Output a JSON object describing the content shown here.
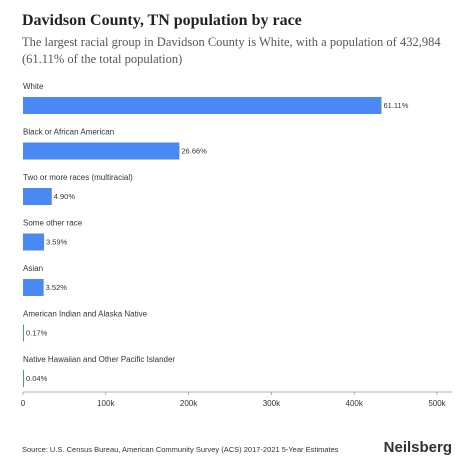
{
  "chart_data": {
    "type": "hbar",
    "title": "Davidson County, TN population by race",
    "subtitle": "The largest racial group in Davidson County is White, with a population of 432,984 (61.11% of the total population)",
    "categories": [
      "White",
      "Black or African American",
      "Two or more races (multiracial)",
      "Some other race",
      "Asian",
      "American Indian and Alaska Native",
      "Native Hawaiian and Other Pacific Islander"
    ],
    "values": [
      432984,
      188895,
      34718,
      25436,
      24940,
      1205,
      283
    ],
    "value_labels": [
      "61.11%",
      "26.66%",
      "4.90%",
      "3.59%",
      "3.52%",
      "0.17%",
      "0.04%"
    ],
    "color": "#4a89f3",
    "xlim": [
      0,
      500000
    ],
    "xticks": [
      0,
      {
        "value": 100000,
        "label": "100k"
      },
      {
        "value": 200000,
        "label": "200k"
      },
      {
        "value": 300000,
        "label": "300k"
      },
      {
        "value": 400000,
        "label": "400k"
      },
      {
        "value": 500000,
        "label": "500k"
      }
    ],
    "source": "Source: U.S. Census Bureau, American Community Survey (ACS) 2017-2021 5-Year Estimates",
    "brand": "Neilsberg"
  }
}
